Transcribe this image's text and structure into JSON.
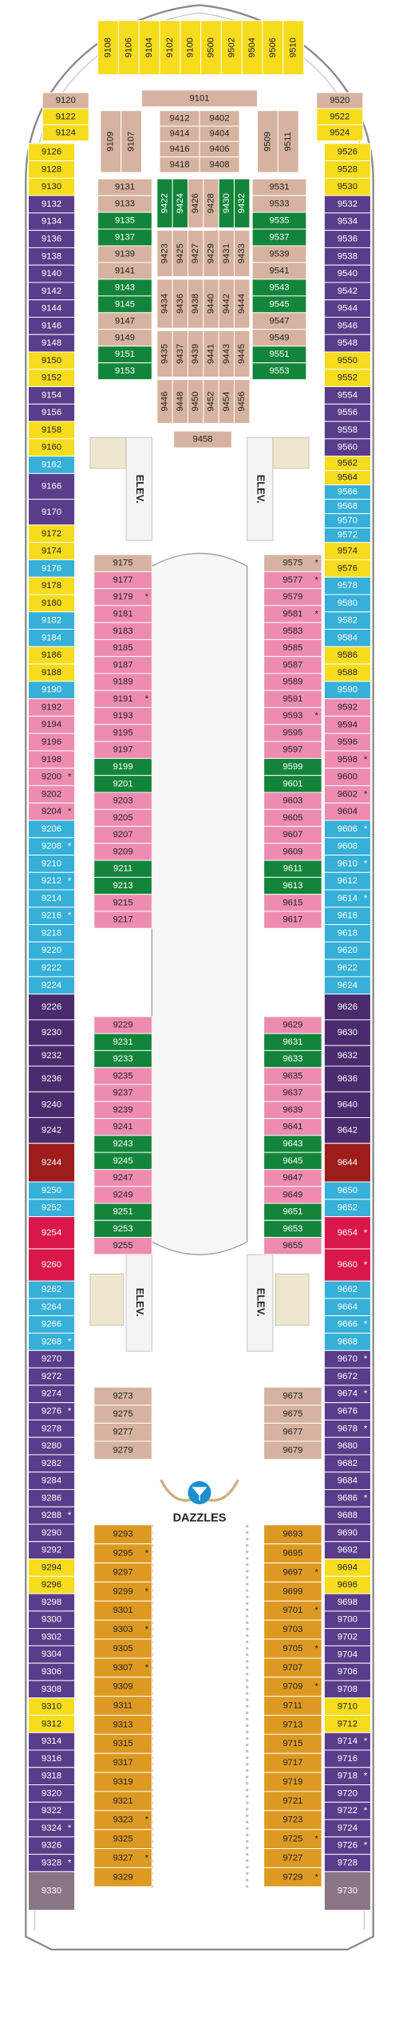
{
  "top_suites": [
    {
      "color": "#f6dc1c",
      "cabins": [
        "9108",
        "9106",
        "9104",
        "9102",
        "9100",
        "9500",
        "9502",
        "9504",
        "9506",
        "9510"
      ]
    }
  ],
  "forward_left": [
    {
      "color": "#d6b3a0",
      "cabins": [
        "9120"
      ]
    },
    {
      "color": "#f6dc1c",
      "cabins": [
        "9122",
        "9124"
      ]
    }
  ],
  "forward_right": [
    {
      "color": "#d6b3a0",
      "cabins": [
        "9520"
      ]
    },
    {
      "color": "#f6dc1c",
      "cabins": [
        "9522",
        "9524"
      ]
    }
  ],
  "forward_center": [
    {
      "color": "#d6b3a0",
      "cabins": [
        "9101"
      ]
    }
  ],
  "forward_side_left": [
    {
      "color": "#d6b3a0",
      "cabins": [
        "9109",
        "9107"
      ]
    }
  ],
  "forward_side_right": [
    {
      "color": "#d6b3a0",
      "cabins": [
        "9509",
        "9511"
      ]
    }
  ],
  "forward_pair_left": [
    {
      "color": "#d6b3a0",
      "cabins": [
        "9412",
        "9414",
        "9416",
        "9418"
      ]
    }
  ],
  "forward_pair_right": [
    {
      "color": "#d6b3a0",
      "cabins": [
        "9402",
        "9404",
        "9406",
        "9408"
      ]
    }
  ],
  "mid_left": [
    {
      "color": "#d6b3a0",
      "cabins": [
        "9131",
        "9133"
      ]
    },
    {
      "color": "#13853b",
      "cabins": [
        "9135",
        "9137"
      ]
    },
    {
      "color": "#d6b3a0",
      "cabins": [
        "9139",
        "9141"
      ]
    },
    {
      "color": "#13853b",
      "cabins": [
        "9143",
        "9145"
      ]
    },
    {
      "color": "#d6b3a0",
      "cabins": [
        "9147",
        "9149"
      ]
    },
    {
      "color": "#13853b",
      "cabins": [
        "9151",
        "9153"
      ]
    }
  ],
  "mid_right": [
    {
      "color": "#d6b3a0",
      "cabins": [
        "9531",
        "9533"
      ]
    },
    {
      "color": "#13853b",
      "cabins": [
        "9535",
        "9537"
      ]
    },
    {
      "color": "#d6b3a0",
      "cabins": [
        "9539",
        "9541"
      ]
    },
    {
      "color": "#13853b",
      "cabins": [
        "9543",
        "9545"
      ]
    },
    {
      "color": "#d6b3a0",
      "cabins": [
        "9547",
        "9549"
      ]
    },
    {
      "color": "#13853b",
      "cabins": [
        "9551",
        "9553"
      ]
    }
  ],
  "mid_row_1": [
    {
      "color": "#13853b",
      "cabins": [
        "9422",
        "9424"
      ]
    },
    {
      "color": "#d6b3a0",
      "cabins": [
        "9426",
        "9428"
      ]
    },
    {
      "color": "#13853b",
      "cabins": [
        "9430",
        "9432"
      ]
    }
  ],
  "mid_row_2": [
    {
      "color": "#d6b3a0",
      "cabins": [
        "9423",
        "9425",
        "9427",
        "9429",
        "9431",
        "9433"
      ]
    }
  ],
  "mid_row_3": [
    {
      "color": "#d6b3a0",
      "cabins": [
        "9434",
        "9436",
        "9438",
        "9440",
        "9442",
        "9444"
      ]
    }
  ],
  "mid_row_4": [
    {
      "color": "#d6b3a0",
      "cabins": [
        "9435",
        "9437",
        "9439",
        "9441",
        "9443",
        "9445"
      ]
    }
  ],
  "mid_row_5": [
    {
      "color": "#d6b3a0",
      "cabins": [
        "9446",
        "9448",
        "9450",
        "9452",
        "9454",
        "9456"
      ]
    }
  ],
  "aft_center": [
    {
      "color": "#d6b3a0",
      "cabins": [
        "9458"
      ]
    }
  ],
  "left_outer": [
    {
      "color": "#f6dc1c",
      "cabins": [
        "9126",
        "9128",
        "9130"
      ]
    },
    {
      "color": "#5a3d8a",
      "cabins": [
        "9132",
        "9134",
        "9136",
        "9138",
        "9140",
        "9142",
        "9144",
        "9146",
        "9148"
      ]
    },
    {
      "color": "#f6dc1c",
      "cabins": [
        "9150",
        "9152"
      ]
    },
    {
      "color": "#5a3d8a",
      "cabins": [
        "9154",
        "9156"
      ]
    },
    {
      "color": "#f6dc1c",
      "cabins": [
        "9158",
        "9160"
      ]
    },
    {
      "color": "#36b0d8",
      "cabins": [
        "9162"
      ]
    },
    {
      "color": "#5a3d8a",
      "cabins": [
        "9166",
        "9170"
      ]
    },
    {
      "color": "#f6dc1c",
      "cabins": [
        "9172",
        "9174"
      ]
    },
    {
      "color": "#36b0d8",
      "cabins": [
        "9176"
      ]
    },
    {
      "color": "#f6dc1c",
      "cabins": [
        "9178",
        "9180"
      ]
    },
    {
      "color": "#36b0d8",
      "cabins": [
        "9182",
        "9184"
      ]
    },
    {
      "color": "#f6dc1c",
      "cabins": [
        "9186",
        "9188"
      ]
    },
    {
      "color": "#36b0d8",
      "cabins": [
        "9190"
      ]
    },
    {
      "color": "#ee8cb0",
      "cabins": [
        "9192",
        "9194",
        "9196",
        "9198",
        {
          "label": "9200",
          "note": "*"
        },
        "9202",
        {
          "label": "9204",
          "note": "*"
        }
      ]
    },
    {
      "color": "#36b0d8",
      "cabins": [
        "9206",
        {
          "label": "9208",
          "note": "*"
        },
        "9210",
        {
          "label": "9212",
          "note": "*"
        },
        "9214",
        {
          "label": "9216",
          "note": "*"
        },
        "9218",
        "9220",
        "9222",
        "9224"
      ]
    },
    {
      "color": "#4a2c6e",
      "cabins": [
        "9226",
        "9230",
        "9232",
        "9236",
        "9240",
        "9242"
      ]
    },
    {
      "color": "#9e1c1c",
      "cabins": [
        "9244"
      ]
    },
    {
      "color": "#36b0d8",
      "cabins": [
        "9250",
        "9252"
      ]
    },
    {
      "color": "#d9174a",
      "cabins": [
        "9254",
        "9260"
      ]
    },
    {
      "color": "#36b0d8",
      "cabins": [
        "9262",
        "9264",
        "9266",
        {
          "label": "9268",
          "note": "*"
        }
      ]
    },
    {
      "color": "#5a3d8a",
      "cabins": [
        "9270",
        "9272",
        "9274",
        {
          "label": "9276",
          "note": "*"
        },
        "9278",
        "9280",
        "9282",
        "9284",
        "9286",
        {
          "label": "9288",
          "note": "*"
        },
        "9290",
        "9292"
      ]
    },
    {
      "color": "#f6dc1c",
      "cabins": [
        "9294",
        "9296"
      ]
    },
    {
      "color": "#5a3d8a",
      "cabins": [
        "9298",
        "9300",
        "9302",
        "9304",
        "9306",
        "9308"
      ]
    },
    {
      "color": "#f6dc1c",
      "cabins": [
        "9310",
        "9312"
      ]
    },
    {
      "color": "#5a3d8a",
      "cabins": [
        "9314",
        "9316",
        "9318",
        "9320",
        "9322",
        {
          "label": "9324",
          "note": "*"
        },
        "9326",
        {
          "label": "9328",
          "note": "*"
        }
      ]
    },
    {
      "color": "#8a7585",
      "cabins": [
        "9330"
      ]
    }
  ],
  "right_outer": [
    {
      "color": "#f6dc1c",
      "cabins": [
        "9526",
        "9528",
        "9530"
      ]
    },
    {
      "color": "#5a3d8a",
      "cabins": [
        "9532",
        "9534",
        "9536",
        "9538",
        "9540",
        "9542",
        "9544",
        "9546",
        "9548"
      ]
    },
    {
      "color": "#f6dc1c",
      "cabins": [
        "9550",
        "9552"
      ]
    },
    {
      "color": "#5a3d8a",
      "cabins": [
        "9554",
        "9556",
        "9558",
        "9560"
      ]
    },
    {
      "color": "#f6dc1c",
      "cabins": [
        "9562",
        "9564"
      ]
    },
    {
      "color": "#36b0d8",
      "cabins": [
        "9566",
        "9568",
        "9570",
        "9572"
      ]
    },
    {
      "color": "#f6dc1c",
      "cabins": [
        "9574",
        "9576"
      ]
    },
    {
      "color": "#36b0d8",
      "cabins": [
        "9578",
        "9580",
        "9582",
        "9584"
      ]
    },
    {
      "color": "#f6dc1c",
      "cabins": [
        "9586",
        "9588"
      ]
    },
    {
      "color": "#36b0d8",
      "cabins": [
        "9590"
      ]
    },
    {
      "color": "#ee8cb0",
      "cabins": [
        "9592",
        "9594",
        "9596",
        {
          "label": "9598",
          "note": "*"
        },
        "9600",
        {
          "label": "9602",
          "note": "*"
        },
        "9604"
      ]
    },
    {
      "color": "#36b0d8",
      "cabins": [
        {
          "label": "9606",
          "note": "*"
        },
        "9608",
        {
          "label": "9610",
          "note": "*"
        },
        "9612",
        {
          "label": "9614",
          "note": "*"
        },
        "9616",
        "9618",
        "9620",
        "9622",
        "9624"
      ]
    },
    {
      "color": "#4a2c6e",
      "cabins": [
        "9626",
        "9630",
        "9632",
        "9636",
        "9640",
        "9642"
      ]
    },
    {
      "color": "#9e1c1c",
      "cabins": [
        "9644"
      ]
    },
    {
      "color": "#36b0d8",
      "cabins": [
        "9650",
        "9652"
      ]
    },
    {
      "color": "#d9174a",
      "cabins": [
        {
          "label": "9654",
          "note": "*"
        },
        {
          "label": "9660",
          "note": "*"
        }
      ]
    },
    {
      "color": "#36b0d8",
      "cabins": [
        "9662",
        "9664",
        {
          "label": "9666",
          "note": "*"
        },
        "9668"
      ]
    },
    {
      "color": "#5a3d8a",
      "cabins": [
        {
          "label": "9670",
          "note": "*"
        },
        "9672",
        {
          "label": "9674",
          "note": "*"
        },
        "9676",
        {
          "label": "9678",
          "note": "*"
        },
        "9680",
        "9682",
        "9684",
        {
          "label": "9686",
          "note": "*"
        },
        "9688",
        "9690",
        "9692"
      ]
    },
    {
      "color": "#f6dc1c",
      "cabins": [
        "9694",
        "9696"
      ]
    },
    {
      "color": "#5a3d8a",
      "cabins": [
        "9698",
        "9700",
        "9702",
        "9704",
        "9706",
        "9708"
      ]
    },
    {
      "color": "#f6dc1c",
      "cabins": [
        "9710",
        "9712"
      ]
    },
    {
      "color": "#5a3d8a",
      "cabins": [
        {
          "label": "9714",
          "note": "*"
        },
        "9716",
        {
          "label": "9718",
          "note": "*"
        },
        "9720",
        {
          "label": "9722",
          "note": "*"
        },
        "9724",
        {
          "label": "9726",
          "note": "*"
        },
        "9728"
      ]
    },
    {
      "color": "#8a7585",
      "cabins": [
        "9730"
      ]
    }
  ],
  "left_inner_1": [
    {
      "color": "#d6b3a0",
      "cabins": [
        "9175"
      ]
    },
    {
      "color": "#ee8cb0",
      "cabins": [
        "9177",
        {
          "label": "9179",
          "note": "*"
        },
        "9181",
        "9183",
        "9185",
        "9187",
        "9189",
        {
          "label": "9191",
          "note": "*"
        },
        "9193",
        "9195",
        "9197"
      ]
    },
    {
      "color": "#13853b",
      "cabins": [
        "9199",
        "9201"
      ]
    },
    {
      "color": "#ee8cb0",
      "cabins": [
        "9203",
        "9205",
        "9207",
        "9209"
      ]
    },
    {
      "color": "#13853b",
      "cabins": [
        "9211",
        "9213"
      ]
    },
    {
      "color": "#ee8cb0",
      "cabins": [
        "9215",
        "9217"
      ]
    }
  ],
  "left_inner_2": [
    {
      "color": "#ee8cb0",
      "cabins": [
        "9229"
      ]
    },
    {
      "color": "#13853b",
      "cabins": [
        "9231",
        "9233"
      ]
    },
    {
      "color": "#ee8cb0",
      "cabins": [
        "9235",
        "9237",
        "9239",
        "9241"
      ]
    },
    {
      "color": "#13853b",
      "cabins": [
        "9243",
        "9245"
      ]
    },
    {
      "color": "#ee8cb0",
      "cabins": [
        "9247",
        "9249"
      ]
    },
    {
      "color": "#13853b",
      "cabins": [
        "9251",
        "9253"
      ]
    },
    {
      "color": "#ee8cb0",
      "cabins": [
        "9255"
      ]
    }
  ],
  "left_inner_3": [
    {
      "color": "#d6b3a0",
      "cabins": [
        "9273",
        "9275",
        "9277",
        "9279"
      ]
    }
  ],
  "left_inner_4": [
    {
      "color": "#dd9a22",
      "cabins": [
        "9293",
        {
          "label": "9295",
          "note": "*"
        },
        "9297",
        {
          "label": "9299",
          "note": "*"
        },
        "9301",
        {
          "label": "9303",
          "note": "*"
        },
        "9305",
        {
          "label": "9307",
          "note": "*"
        },
        "9309",
        "9311",
        "9313",
        "9315",
        "9317",
        "9319",
        "9321",
        {
          "label": "9323",
          "note": "*"
        },
        "9325",
        {
          "label": "9327",
          "note": "*"
        },
        "9329"
      ]
    }
  ],
  "right_inner_1": [
    {
      "color": "#d6b3a0",
      "cabins": [
        {
          "label": "9575",
          "note": "*"
        }
      ]
    },
    {
      "color": "#ee8cb0",
      "cabins": [
        {
          "label": "9577",
          "note": "*"
        },
        "9579",
        {
          "label": "9581",
          "note": "*"
        },
        "9583",
        "9585",
        "9587",
        "9589",
        "9591",
        {
          "label": "9593",
          "note": "*"
        },
        "9595",
        "9597"
      ]
    },
    {
      "color": "#13853b",
      "cabins": [
        "9599",
        "9601"
      ]
    },
    {
      "color": "#ee8cb0",
      "cabins": [
        "9603",
        "9605",
        "9607",
        "9609"
      ]
    },
    {
      "color": "#13853b",
      "cabins": [
        "9611",
        "9613"
      ]
    },
    {
      "color": "#ee8cb0",
      "cabins": [
        "9615",
        "9617"
      ]
    }
  ],
  "right_inner_2": [
    {
      "color": "#ee8cb0",
      "cabins": [
        "9629"
      ]
    },
    {
      "color": "#13853b",
      "cabins": [
        "9631",
        "9633"
      ]
    },
    {
      "color": "#ee8cb0",
      "cabins": [
        "9635",
        "9637",
        "9639",
        "9641"
      ]
    },
    {
      "color": "#13853b",
      "cabins": [
        "9643",
        "9645"
      ]
    },
    {
      "color": "#ee8cb0",
      "cabins": [
        "9647",
        "9649"
      ]
    },
    {
      "color": "#13853b",
      "cabins": [
        "9651",
        "9653"
      ]
    },
    {
      "color": "#ee8cb0",
      "cabins": [
        "9655"
      ]
    }
  ],
  "right_inner_3": [
    {
      "color": "#d6b3a0",
      "cabins": [
        "9673",
        "9675",
        "9677",
        "9679"
      ]
    }
  ],
  "right_inner_4": [
    {
      "color": "#dd9a22",
      "cabins": [
        "9693",
        "9695",
        {
          "label": "9697",
          "note": "*"
        },
        "9699",
        {
          "label": "9701",
          "note": "*"
        },
        "9703",
        {
          "label": "9705",
          "note": "*"
        },
        "9707",
        {
          "label": "9709",
          "note": "*"
        },
        "9711",
        "9713",
        "9715",
        "9717",
        "9719",
        "9721",
        "9723",
        {
          "label": "9725",
          "note": "*"
        },
        "9727",
        {
          "label": "9729",
          "note": "*"
        }
      ]
    }
  ],
  "elevators": [
    "ELEV.",
    "ELEV.",
    "ELEV.",
    "ELEV."
  ],
  "venue": "DAZZLES"
}
